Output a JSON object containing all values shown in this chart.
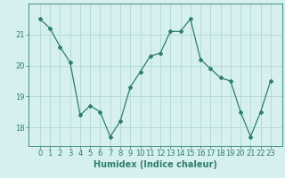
{
  "x": [
    0,
    1,
    2,
    3,
    4,
    5,
    6,
    7,
    8,
    9,
    10,
    11,
    12,
    13,
    14,
    15,
    16,
    17,
    18,
    19,
    20,
    21,
    22,
    23
  ],
  "y": [
    21.5,
    21.2,
    20.6,
    20.1,
    18.4,
    18.7,
    18.5,
    17.7,
    18.2,
    19.3,
    19.8,
    20.3,
    20.4,
    21.1,
    21.1,
    21.5,
    20.2,
    19.9,
    19.6,
    19.5,
    18.5,
    17.7,
    18.5,
    19.5
  ],
  "line_color": "#2e7d6e",
  "marker": "D",
  "marker_size": 2,
  "bg_color": "#d6f0ef",
  "grid_color": "#b0d8d5",
  "xlabel": "Humidex (Indice chaleur)",
  "xlabel_fontsize": 7,
  "tick_fontsize": 6,
  "ylim": [
    17.4,
    22.0
  ],
  "yticks": [
    18,
    19,
    20,
    21
  ],
  "xticks": [
    0,
    1,
    2,
    3,
    4,
    5,
    6,
    7,
    8,
    9,
    10,
    11,
    12,
    13,
    14,
    15,
    16,
    17,
    18,
    19,
    20,
    21,
    22,
    23
  ]
}
